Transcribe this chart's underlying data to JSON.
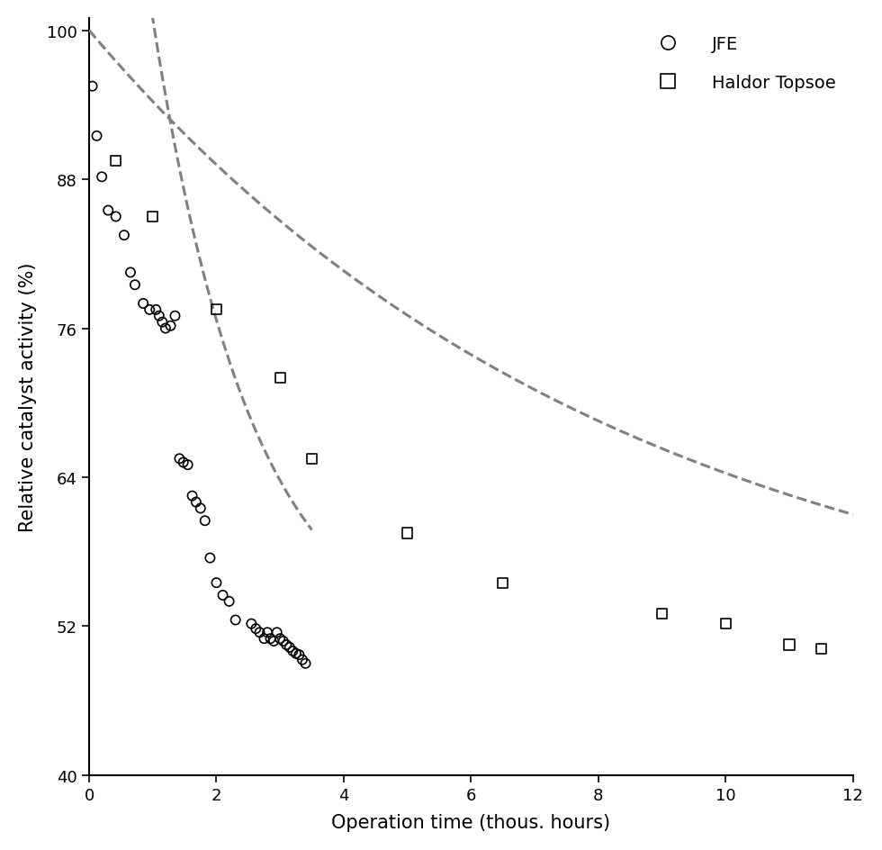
{
  "jfe_x": [
    0.05,
    0.12,
    0.2,
    0.3,
    0.42,
    0.55,
    0.65,
    0.72,
    0.85,
    0.95,
    1.05,
    1.1,
    1.15,
    1.2,
    1.28,
    1.35,
    1.42,
    1.48,
    1.55,
    1.62,
    1.68,
    1.75,
    1.82,
    1.9,
    2.0,
    2.1,
    2.2,
    2.3,
    2.55,
    2.62,
    2.68,
    2.75,
    2.8,
    2.85,
    2.9,
    2.95,
    3.0,
    3.05,
    3.1,
    3.15,
    3.2,
    3.25,
    3.3,
    3.35,
    3.4
  ],
  "jfe_y": [
    95.5,
    91.5,
    88.2,
    85.5,
    85.0,
    83.5,
    80.5,
    79.5,
    78.0,
    77.5,
    77.5,
    77.0,
    76.5,
    76.0,
    76.2,
    77.0,
    65.5,
    65.2,
    65.0,
    62.5,
    62.0,
    61.5,
    60.5,
    57.5,
    55.5,
    54.5,
    54.0,
    52.5,
    52.2,
    51.8,
    51.5,
    51.0,
    51.5,
    51.0,
    50.8,
    51.5,
    51.0,
    50.8,
    50.5,
    50.3,
    50.0,
    49.8,
    49.7,
    49.3,
    49.0
  ],
  "haldor_x": [
    0.42,
    1.0,
    2.0,
    3.0,
    3.5,
    5.0,
    6.5,
    9.0,
    10.0,
    11.0,
    11.5
  ],
  "haldor_y": [
    89.5,
    85.0,
    77.5,
    72.0,
    65.5,
    59.5,
    55.5,
    53.0,
    52.2,
    50.5,
    50.2
  ],
  "jfe_fit_x_start": 0.0,
  "jfe_fit_x_end": 3.5,
  "haldor_fit_x_start": 0.0,
  "haldor_fit_x_end": 12.0,
  "jfe_fit_a": 97.5,
  "jfe_fit_b": 0.63,
  "jfe_fit_c": 49.0,
  "haldor_fit_a": 51.5,
  "haldor_fit_b": 0.118,
  "haldor_fit_c": 48.5,
  "xlim": [
    0,
    12
  ],
  "ylim": [
    40,
    101
  ],
  "xticks": [
    0,
    2,
    4,
    6,
    8,
    10,
    12
  ],
  "yticks": [
    40,
    52,
    64,
    76,
    88,
    100
  ],
  "xlabel": "Operation time (thous. hours)",
  "ylabel": "Relative catalyst activity (%)",
  "legend_labels": [
    "JFE",
    "Haldor Topsoe"
  ],
  "fit_color": "#808080",
  "marker_color": "black",
  "background_color": "#ffffff"
}
